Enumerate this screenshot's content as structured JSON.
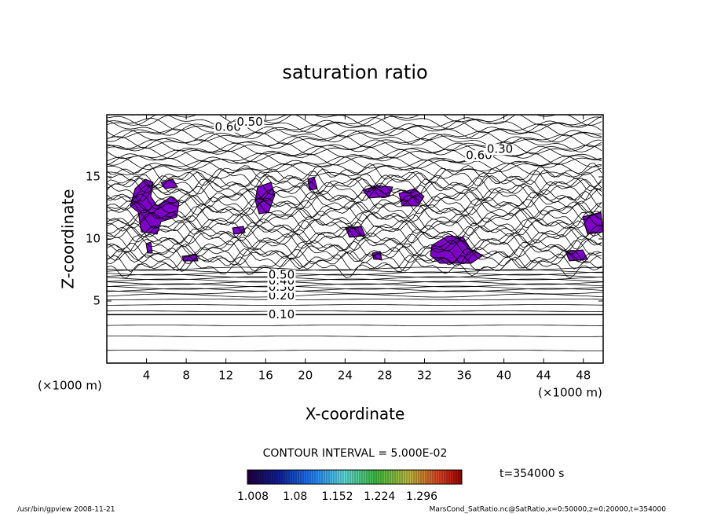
{
  "chart_data": {
    "type": "contour",
    "title": "saturation ratio",
    "x_label": "X-coordinate",
    "y_label": "Z-coordinate",
    "x_unit": "(×1000 m)",
    "y_unit": "(×1000 m)",
    "xlim": [
      0,
      50
    ],
    "xticks": [
      4,
      8,
      12,
      16,
      20,
      24,
      28,
      32,
      36,
      40,
      44,
      48
    ],
    "ylim": [
      0,
      20
    ],
    "yticks": [
      5,
      10,
      15
    ],
    "contour_labels": [
      {
        "value": 0.1,
        "label": "0.10",
        "x": 17.6,
        "z": 3.9
      },
      {
        "value": 0.2,
        "label": "0.20",
        "x": 17.6,
        "z": 5.4
      },
      {
        "value": 0.3,
        "label": "0.30",
        "x": 17.6,
        "z": 6.1
      },
      {
        "value": 0.4,
        "label": "0.40",
        "x": 17.6,
        "z": 6.6
      },
      {
        "value": 0.5,
        "label": "0.50",
        "x": 17.6,
        "z": 7.1
      },
      {
        "value": 0.6,
        "label": "0.60",
        "x": 12.2,
        "z": 19.0
      },
      {
        "value": 0.5,
        "label": "0.50",
        "x": 14.4,
        "z": 19.4
      },
      {
        "value": 0.6,
        "label": "0.60",
        "x": 37.5,
        "z": 16.7
      },
      {
        "value": 0.3,
        "label": "0.30",
        "x": 39.6,
        "z": 17.2
      }
    ],
    "contour_interval": "CONTOUR INTERVAL = 5.000E-02",
    "time": "t=354000 s",
    "colorbar_ticks": [
      1.008,
      1.08,
      1.152,
      1.224,
      1.296
    ],
    "footer_left": "/usr/bin/gpview   2008-11-21",
    "footer_right": "MarsCond_SatRatio.nc@SatRatio,x=0:50000,z=0:20000,t=354000"
  }
}
